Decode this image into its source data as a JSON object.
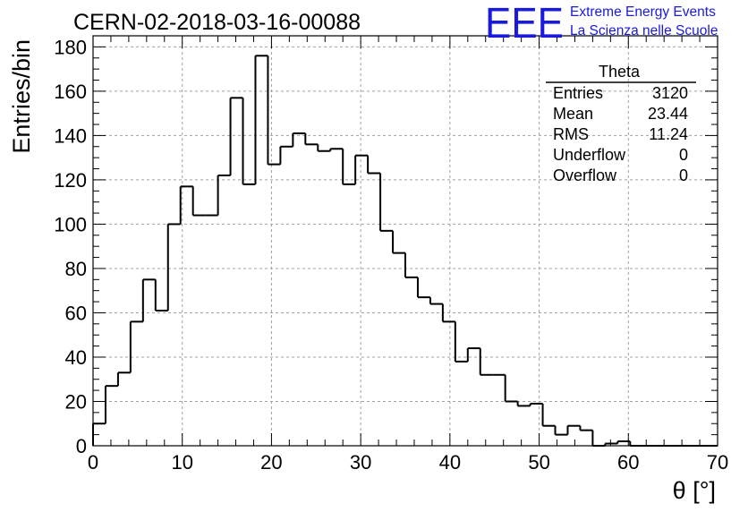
{
  "header": {
    "run_title": "CERN-02-2018-03-16-00088",
    "logo_text": "EEE",
    "logo_line1": "Extreme Energy Events",
    "logo_line2": "La Scienza nelle Scuole",
    "logo_color": "#1a1adf"
  },
  "stats_box": {
    "title": "Theta",
    "rows": [
      {
        "label": "Entries",
        "value": "3120"
      },
      {
        "label": "Mean",
        "value": "23.44"
      },
      {
        "label": "RMS",
        "value": "11.24"
      },
      {
        "label": "Underflow",
        "value": "0"
      },
      {
        "label": "Overflow",
        "value": "0"
      }
    ]
  },
  "chart_data": {
    "type": "histogram",
    "title": "",
    "xlabel": "θ [°]",
    "ylabel": "Entries/bin",
    "xlim": [
      0,
      70
    ],
    "ylim": [
      0,
      185
    ],
    "bin_width": 1.4,
    "x_ticks": [
      0,
      10,
      20,
      30,
      40,
      50,
      60,
      70
    ],
    "y_ticks": [
      0,
      20,
      40,
      60,
      80,
      100,
      120,
      140,
      160,
      180
    ],
    "grid": true,
    "line_color": "#000000",
    "values": [
      10,
      27,
      33,
      56,
      75,
      61,
      100,
      117,
      104,
      104,
      122,
      157,
      118,
      176,
      127,
      135,
      141,
      136,
      133,
      134,
      118,
      131,
      123,
      97,
      87,
      76,
      67,
      64,
      56,
      38,
      44,
      32,
      32,
      20,
      18,
      19,
      9,
      5,
      9,
      7,
      0,
      1,
      2,
      0,
      0,
      0,
      0,
      0,
      0,
      0
    ]
  }
}
